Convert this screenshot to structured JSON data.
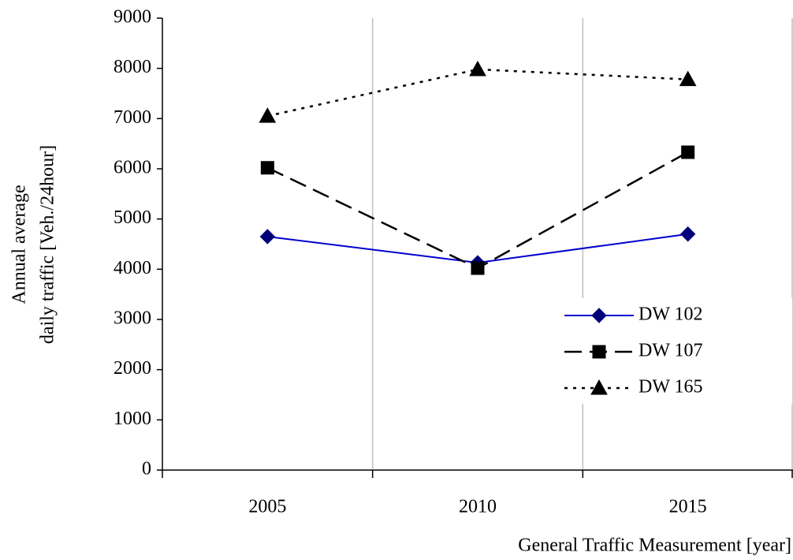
{
  "chart_data": {
    "type": "line",
    "xlabel": "General Traffic Measurement [year]",
    "ylabel": [
      "Annual average",
      "daily traffic  [Veh./24hour]"
    ],
    "categories": [
      "2005",
      "2010",
      "2015"
    ],
    "series": [
      {
        "name": "DW 102",
        "color": "#0000cc",
        "dash": "solid",
        "marker": "diamond",
        "values": [
          4650,
          4130,
          4700
        ]
      },
      {
        "name": "DW 107",
        "color": "#000000",
        "dash": "dashed",
        "marker": "square",
        "values": [
          6020,
          4020,
          6330
        ]
      },
      {
        "name": "DW 165",
        "color": "#000000",
        "dash": "dotted",
        "marker": "triangle",
        "values": [
          7050,
          7980,
          7780
        ]
      }
    ],
    "ylim": [
      0,
      9000
    ],
    "yticks": [
      0,
      1000,
      2000,
      3000,
      4000,
      5000,
      6000,
      7000,
      8000,
      9000
    ],
    "grid": "x",
    "legend": "right"
  }
}
